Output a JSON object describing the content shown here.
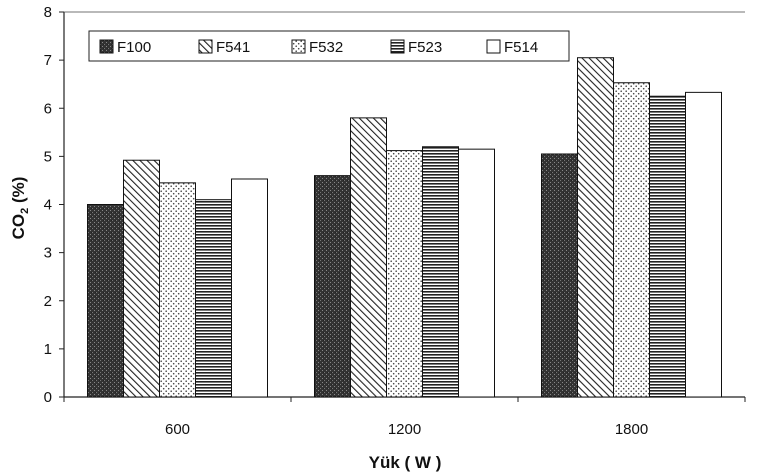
{
  "chart_data": {
    "type": "bar",
    "categories": [
      "600",
      "1200",
      "1800"
    ],
    "series": [
      {
        "name": "F100",
        "values": [
          4.0,
          4.6,
          5.05
        ],
        "pattern": "dark-stipple"
      },
      {
        "name": "F541",
        "values": [
          4.92,
          5.8,
          7.05
        ],
        "pattern": "diagonal-hatch"
      },
      {
        "name": "F532",
        "values": [
          4.45,
          5.12,
          6.53
        ],
        "pattern": "dots"
      },
      {
        "name": "F523",
        "values": [
          4.1,
          5.2,
          6.25
        ],
        "pattern": "horizontal-lines"
      },
      {
        "name": "F514",
        "values": [
          4.53,
          5.15,
          6.33
        ],
        "pattern": "white"
      }
    ],
    "xlabel": "Yük ( W )",
    "ylabel_main": "CO",
    "ylabel_sub": "2",
    "ylabel_unit": " (%)",
    "ylim": [
      0,
      8
    ],
    "yticks": [
      "0",
      "1",
      "2",
      "3",
      "4",
      "5",
      "6",
      "7",
      "8"
    ],
    "grid": false,
    "legend_position": "top-left"
  }
}
